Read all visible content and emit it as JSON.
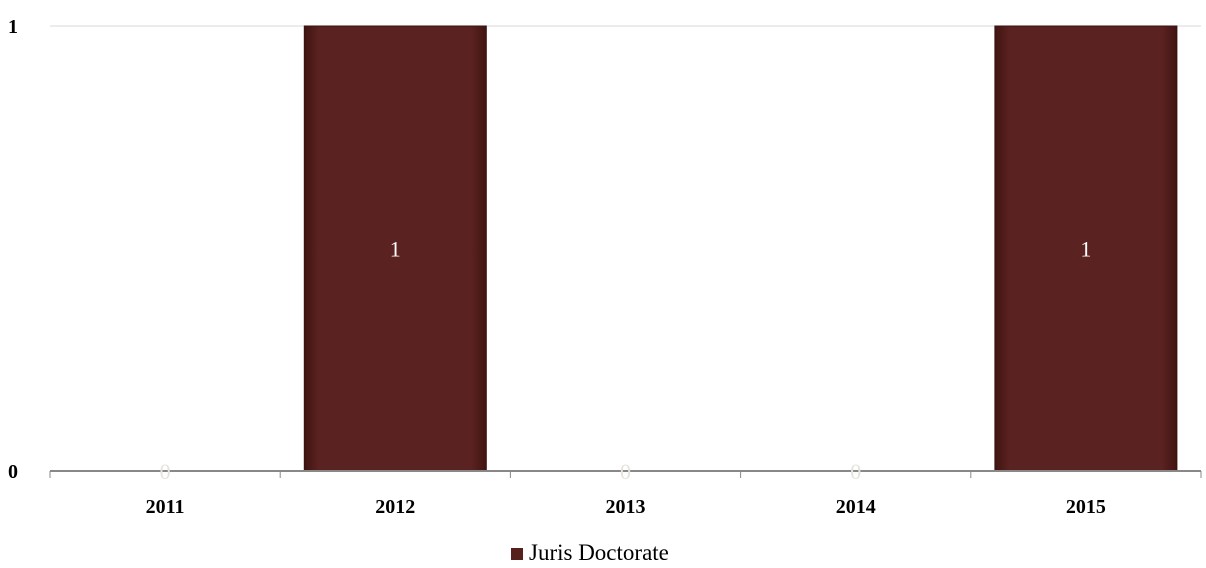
{
  "chart_data": {
    "type": "bar",
    "categories": [
      "2011",
      "2012",
      "2013",
      "2014",
      "2015"
    ],
    "series": [
      {
        "name": "Juris Doctorate",
        "values": [
          0,
          1,
          0,
          0,
          1
        ],
        "color": "#56201d"
      }
    ],
    "ylim": [
      0,
      1
    ],
    "yticks": [
      "0",
      "1"
    ],
    "grid": true,
    "legend": "bottom-center",
    "data_labels": true
  }
}
